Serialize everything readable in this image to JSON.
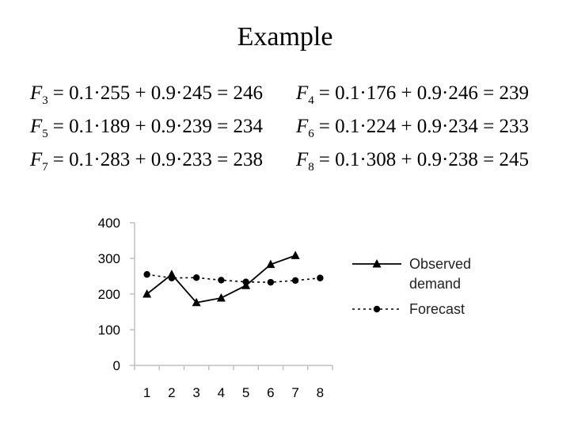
{
  "title": "Example",
  "equations": [
    {
      "var": "F",
      "sub": "3",
      "rhs": "= 0.1·255 + 0.9·245 = 246"
    },
    {
      "var": "F",
      "sub": "4",
      "rhs": "= 0.1·176 + 0.9·246 = 239"
    },
    {
      "var": "F",
      "sub": "5",
      "rhs": "= 0.1·189 + 0.9·239 = 234"
    },
    {
      "var": "F",
      "sub": "6",
      "rhs": "= 0.1·224 + 0.9·234 = 233"
    },
    {
      "var": "F",
      "sub": "7",
      "rhs": "= 0.1·283 + 0.9·233 = 238"
    },
    {
      "var": "F",
      "sub": "8",
      "rhs": "= 0.1·308 + 0.9·238 = 245"
    }
  ],
  "chart_data": {
    "type": "line",
    "x": [
      1,
      2,
      3,
      4,
      5,
      6,
      7,
      8
    ],
    "x_tick_labels": [
      "1",
      "2",
      "3",
      "4",
      "5",
      "6",
      "7",
      "8"
    ],
    "y_tick_labels": [
      "0",
      "100",
      "200",
      "300",
      "400"
    ],
    "ylim": [
      0,
      400
    ],
    "xlim": [
      0.5,
      8.5
    ],
    "grid": false,
    "legend_position": "right",
    "series": [
      {
        "name": "Observed demand",
        "legend_lines": [
          "Observed",
          "demand"
        ],
        "marker": "triangle",
        "line_style": "solid",
        "x": [
          1,
          2,
          3,
          4,
          5,
          6,
          7
        ],
        "values": [
          200,
          255,
          176,
          189,
          224,
          283,
          308
        ]
      },
      {
        "name": "Forecast",
        "legend_lines": [
          "Forecast"
        ],
        "marker": "circle",
        "line_style": "dotted",
        "x": [
          1,
          2,
          3,
          4,
          5,
          6,
          7,
          8
        ],
        "values": [
          255,
          245,
          246,
          239,
          234,
          233,
          238,
          245
        ]
      }
    ],
    "colors": {
      "axis": "#c0c0c0",
      "series": "#000000"
    }
  }
}
